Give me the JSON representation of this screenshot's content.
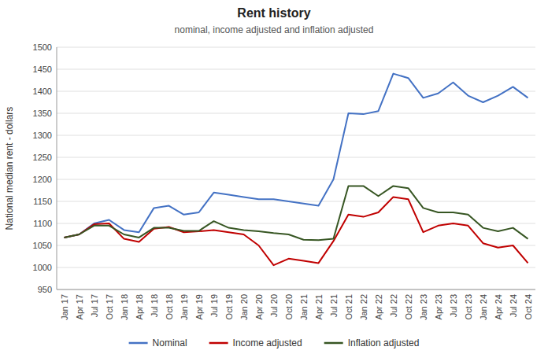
{
  "chart_data": {
    "type": "line",
    "title": "Rent history",
    "subtitle": "nominal, income adjusted and inflation adjusted",
    "y_label": "National median rent - dollars",
    "categories": [
      "Jan 17",
      "Apr 17",
      "Jul 17",
      "Oct 17",
      "Jan 18",
      "Apr 18",
      "Jul 18",
      "Oct 18",
      "Jan 19",
      "Apr 19",
      "Jul 19",
      "Oct 19",
      "Jan 20",
      "Apr 20",
      "Jul 20",
      "Oct 20",
      "Jan 21",
      "Apr 21",
      "Jul 21",
      "Oct 21",
      "Jan 22",
      "Apr 22",
      "Jul 22",
      "Oct 22",
      "Jan 23",
      "Apr 23",
      "Jul 23",
      "Oct 23",
      "Jan 24",
      "Apr 24",
      "Jul 24",
      "Oct 24"
    ],
    "series": [
      {
        "name": "Nominal",
        "color": "#4472C4",
        "values": [
          1068,
          1075,
          1100,
          1108,
          1085,
          1080,
          1135,
          1140,
          1120,
          1125,
          1170,
          1165,
          1160,
          1155,
          1155,
          1150,
          1145,
          1140,
          1200,
          1350,
          1348,
          1355,
          1440,
          1430,
          1385,
          1395,
          1420,
          1390,
          1375,
          1390,
          1410,
          1385
        ]
      },
      {
        "name": "Income adjusted",
        "color": "#C00000",
        "values": [
          1068,
          1075,
          1098,
          1100,
          1065,
          1058,
          1088,
          1092,
          1080,
          1082,
          1085,
          1080,
          1075,
          1050,
          1005,
          1020,
          1015,
          1010,
          1060,
          1120,
          1115,
          1125,
          1160,
          1155,
          1080,
          1095,
          1100,
          1095,
          1055,
          1045,
          1050,
          1010
        ]
      },
      {
        "name": "Inflation adjusted",
        "color": "#375623",
        "values": [
          1068,
          1075,
          1095,
          1095,
          1075,
          1068,
          1090,
          1090,
          1083,
          1083,
          1105,
          1090,
          1085,
          1082,
          1078,
          1075,
          1063,
          1062,
          1065,
          1185,
          1185,
          1162,
          1185,
          1180,
          1135,
          1125,
          1125,
          1120,
          1090,
          1082,
          1090,
          1065
        ]
      }
    ],
    "ylim": [
      950,
      1500
    ],
    "yticks": [
      950,
      1000,
      1050,
      1100,
      1150,
      1200,
      1250,
      1300,
      1350,
      1400,
      1450,
      1500
    ],
    "grid": true,
    "legend": "bottom"
  }
}
